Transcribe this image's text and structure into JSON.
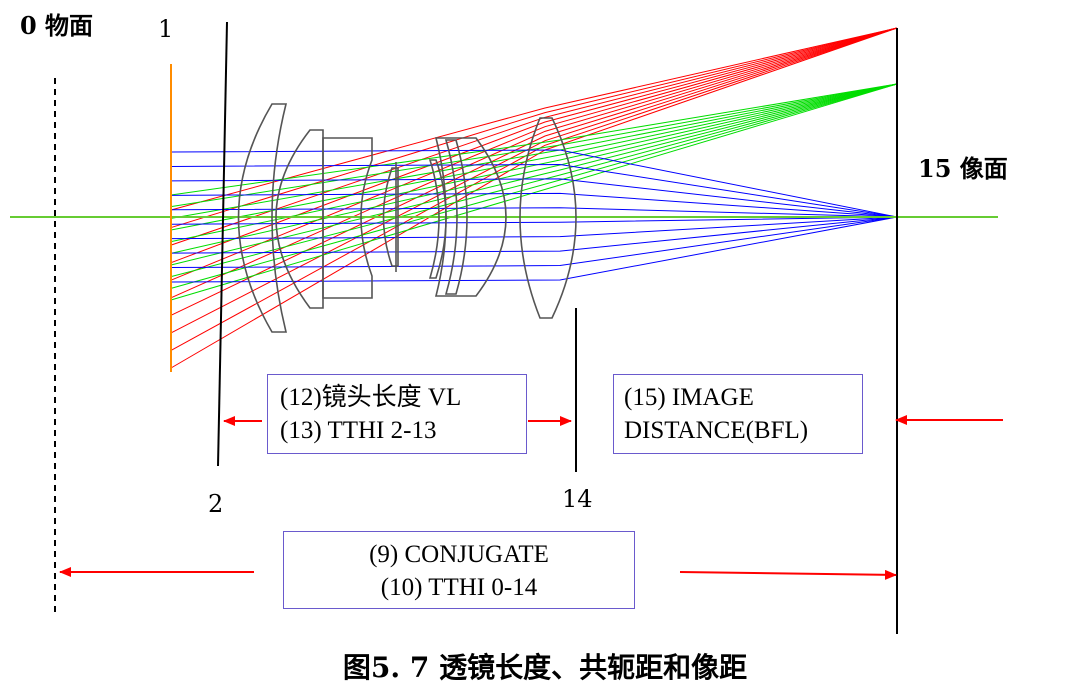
{
  "labels": {
    "object_plane": "0 物面",
    "surface_1": "1",
    "surface_2": "2",
    "surface_14": "14",
    "image_plane": "15 像面"
  },
  "boxes": {
    "lens_length": {
      "line1": "(12)镜头长度 VL",
      "line2": "(13) TTHI 2-13"
    },
    "image_distance": {
      "line1": "(15) IMAGE",
      "line2": "DISTANCE(BFL)"
    },
    "conjugate": {
      "line1": "(9) CONJUGATE",
      "line2": "(10) TTHI  0-14"
    }
  },
  "caption": "图5. 7 透镜长度、共轭距和像距",
  "colors": {
    "ray_field_max": "#ff0000",
    "ray_field_mid": "#00dd00",
    "ray_on_axis": "#0000ff",
    "optical_axis": "#66cc33",
    "object": "#ff8c00",
    "arrow": "#ff0000",
    "box_border": "#6a5acd"
  }
}
